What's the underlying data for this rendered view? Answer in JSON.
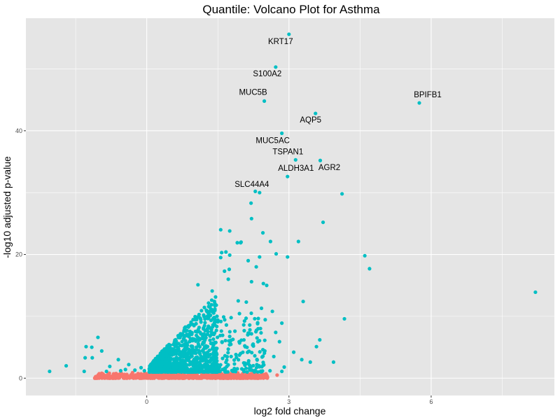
{
  "chart_data": {
    "type": "scatter",
    "title": "Quantile: Volcano Plot for Asthma",
    "xlabel": "log2 fold change",
    "ylabel": "-log10 adjusted p-value",
    "xlim": [
      -2.55,
      8.6
    ],
    "ylim": [
      -2.8,
      58.2
    ],
    "x_ticks": [
      0,
      3,
      6
    ],
    "y_ticks": [
      0,
      20,
      40
    ],
    "background": "#e5e5e5",
    "grid": true,
    "colors": {
      "significant": "#00bfc4",
      "not_significant": "#f8766d"
    },
    "labeled_points": [
      {
        "label": "KRT17",
        "x": 3.0,
        "y": 55.6
      },
      {
        "label": "S100A2",
        "x": 2.72,
        "y": 50.3
      },
      {
        "label": "MUC5B",
        "x": 2.48,
        "y": 44.8
      },
      {
        "label": "BPIFB1",
        "x": 5.75,
        "y": 44.5
      },
      {
        "label": "AQP5",
        "x": 3.56,
        "y": 42.8
      },
      {
        "label": "MUC5AC",
        "x": 2.85,
        "y": 39.6
      },
      {
        "label": "TSPAN1",
        "x": 3.14,
        "y": 35.3
      },
      {
        "label": "AGR2",
        "x": 3.66,
        "y": 35.2
      },
      {
        "label": "ALDH3A1",
        "x": 2.97,
        "y": 32.6
      },
      {
        "label": "SLC44A4",
        "x": 2.38,
        "y": 30.0
      }
    ],
    "significant_points": [
      [
        4.12,
        29.8
      ],
      [
        2.29,
        30.2
      ],
      [
        2.2,
        28.3
      ],
      [
        3.72,
        25.2
      ],
      [
        2.21,
        25.8
      ],
      [
        2.45,
        23.5
      ],
      [
        1.56,
        24.0
      ],
      [
        1.75,
        23.8
      ],
      [
        2.61,
        22.1
      ],
      [
        3.2,
        22.1
      ],
      [
        1.91,
        21.9
      ],
      [
        1.98,
        21.9
      ],
      [
        1.99,
        22.0
      ],
      [
        1.67,
        20.4
      ],
      [
        1.58,
        20.3
      ],
      [
        4.6,
        19.8
      ],
      [
        2.73,
        20.1
      ],
      [
        2.97,
        19.6
      ],
      [
        2.38,
        19.6
      ],
      [
        1.75,
        19.9
      ],
      [
        1.56,
        19.5
      ],
      [
        2.14,
        19.0
      ],
      [
        4.7,
        17.7
      ],
      [
        1.74,
        17.6
      ],
      [
        1.64,
        17.3
      ],
      [
        2.31,
        18.0
      ],
      [
        1.72,
        16.0
      ],
      [
        2.21,
        15.6
      ],
      [
        2.46,
        15.3
      ],
      [
        2.53,
        15.0
      ],
      [
        1.08,
        15.1
      ],
      [
        8.2,
        13.9
      ],
      [
        3.3,
        12.4
      ],
      [
        4.17,
        9.6
      ],
      [
        1.38,
        14.1
      ],
      [
        1.93,
        12.5
      ],
      [
        2.1,
        12.3
      ],
      [
        2.42,
        11.3
      ],
      [
        2.65,
        10.8
      ],
      [
        2.85,
        8.9
      ],
      [
        2.35,
        8.0
      ],
      [
        2.72,
        7.4
      ],
      [
        3.65,
        6.2
      ],
      [
        3.58,
        5.1
      ],
      [
        2.8,
        5.9
      ],
      [
        2.25,
        5.2
      ],
      [
        3.1,
        4.2
      ],
      [
        2.68,
        3.5
      ],
      [
        3.94,
        2.6
      ],
      [
        3.45,
        2.6
      ],
      [
        3.27,
        3.0
      ],
      [
        2.07,
        2.1
      ],
      [
        2.15,
        2.8
      ],
      [
        2.37,
        2.0
      ],
      [
        2.9,
        1.8
      ],
      [
        2.85,
        1.1
      ],
      [
        1.85,
        2.3
      ],
      [
        1.6,
        3.2
      ],
      [
        1.98,
        4.0
      ],
      [
        2.45,
        4.6
      ],
      [
        1.35,
        11.2
      ],
      [
        1.2,
        10.2
      ],
      [
        1.5,
        9.4
      ],
      [
        1.68,
        8.6
      ],
      [
        1.28,
        8.0
      ],
      [
        1.86,
        7.6
      ],
      [
        1.55,
        6.9
      ],
      [
        1.12,
        6.4
      ],
      [
        1.42,
        5.6
      ],
      [
        1.95,
        5.9
      ],
      [
        1.72,
        4.7
      ],
      [
        1.05,
        4.6
      ],
      [
        1.28,
        3.8
      ],
      [
        1.78,
        3.5
      ],
      [
        1.48,
        2.8
      ],
      [
        0.92,
        3.4
      ],
      [
        1.12,
        2.6
      ],
      [
        0.7,
        4.1
      ],
      [
        0.85,
        5.6
      ],
      [
        0.95,
        7.1
      ],
      [
        0.62,
        6.0
      ],
      [
        0.55,
        4.6
      ],
      [
        0.42,
        3.6
      ],
      [
        0.35,
        2.7
      ],
      [
        0.28,
        1.9
      ],
      [
        0.2,
        1.4
      ],
      [
        0.12,
        1.1
      ],
      [
        0.75,
        2.3
      ],
      [
        0.48,
        1.7
      ],
      [
        1.22,
        1.9
      ],
      [
        1.05,
        1.4
      ],
      [
        0.8,
        1.3
      ],
      [
        1.6,
        1.4
      ],
      [
        1.82,
        1.1
      ],
      [
        2.18,
        1.3
      ],
      [
        2.6,
        1.2
      ],
      [
        -1.03,
        6.6
      ],
      [
        -0.95,
        4.4
      ],
      [
        -1.16,
        5.0
      ],
      [
        -1.28,
        5.1
      ],
      [
        -1.15,
        3.3
      ],
      [
        -1.3,
        3.3
      ],
      [
        -0.6,
        3.0
      ],
      [
        -0.38,
        2.2
      ],
      [
        -0.12,
        1.7
      ],
      [
        -0.25,
        1.3
      ],
      [
        -0.45,
        1.4
      ],
      [
        -0.78,
        1.9
      ],
      [
        -1.32,
        1.1
      ],
      [
        -1.7,
        2.0
      ],
      [
        -2.05,
        1.1
      ],
      [
        -0.85,
        1.1
      ],
      [
        -0.55,
        1.2
      ],
      [
        -0.05,
        1.2
      ]
    ],
    "nonsignificant_points": [
      [
        -1.05,
        0.2
      ],
      [
        -0.95,
        0.8
      ],
      [
        -0.9,
        0.3
      ],
      [
        -0.82,
        0.6
      ],
      [
        -0.75,
        0.1
      ],
      [
        -0.7,
        0.7
      ],
      [
        -0.62,
        0.4
      ],
      [
        -0.55,
        0.8
      ],
      [
        -0.48,
        0.2
      ],
      [
        -0.42,
        0.6
      ],
      [
        -0.35,
        0.3
      ],
      [
        -0.3,
        0.9
      ],
      [
        -0.24,
        0.5
      ],
      [
        -0.18,
        0.1
      ],
      [
        -0.12,
        0.7
      ],
      [
        -0.06,
        0.3
      ],
      [
        0.0,
        0.6
      ],
      [
        0.06,
        0.2
      ],
      [
        0.12,
        0.8
      ],
      [
        0.18,
        0.4
      ],
      [
        0.25,
        0.1
      ],
      [
        0.32,
        0.7
      ],
      [
        0.38,
        0.3
      ],
      [
        0.45,
        0.9
      ],
      [
        0.52,
        0.5
      ],
      [
        0.58,
        0.2
      ],
      [
        0.65,
        0.8
      ],
      [
        0.72,
        0.4
      ],
      [
        0.8,
        0.1
      ],
      [
        0.88,
        0.6
      ],
      [
        0.95,
        0.3
      ],
      [
        1.02,
        0.8
      ],
      [
        1.1,
        0.2
      ],
      [
        1.18,
        0.5
      ],
      [
        1.26,
        0.9
      ],
      [
        1.34,
        0.3
      ],
      [
        1.42,
        0.6
      ],
      [
        1.5,
        0.2
      ],
      [
        1.58,
        0.7
      ],
      [
        1.66,
        0.4
      ],
      [
        1.75,
        0.2
      ],
      [
        1.82,
        0.6
      ],
      [
        1.9,
        0.3
      ],
      [
        2.0,
        0.5
      ],
      [
        2.1,
        0.2
      ],
      [
        2.2,
        0.7
      ],
      [
        2.36,
        0.4
      ],
      [
        2.5,
        0.1
      ],
      [
        1.55,
        0.9
      ],
      [
        1.62,
        0.5
      ],
      [
        2.03,
        0.8
      ],
      [
        2.12,
        0.5
      ],
      [
        2.3,
        0.3
      ],
      [
        2.52,
        0.5
      ],
      [
        2.75,
        0.5
      ],
      [
        -0.98,
        0.5
      ],
      [
        -0.66,
        0.1
      ],
      [
        0.4,
        0.5
      ],
      [
        0.7,
        0.6
      ],
      [
        1.0,
        0.5
      ]
    ]
  }
}
